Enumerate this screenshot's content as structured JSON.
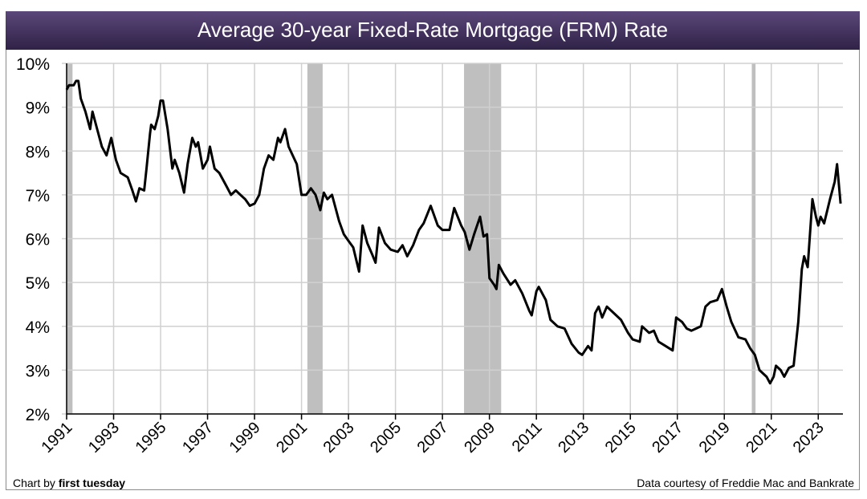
{
  "colors": {
    "title_bar": "#4a3866",
    "line": "#000000",
    "recession": "#bfbfbf",
    "grid": "#d0d0d0"
  },
  "footer": {
    "credit_prefix": "Chart by ",
    "credit_brand": "first tuesday",
    "source": "Data courtesy of Freddie Mac and Bankrate"
  },
  "chart_data": {
    "type": "line",
    "title": "Average 30-year Fixed-Rate Mortgage (FRM) Rate",
    "xlabel": "",
    "ylabel": "",
    "xlim": [
      1991,
      2024.05
    ],
    "ylim": [
      2,
      10
    ],
    "grid": true,
    "x_ticks": [
      "1991",
      "1993",
      "1995",
      "1997",
      "1999",
      "2001",
      "2003",
      "2005",
      "2007",
      "2009",
      "2011",
      "2013",
      "2015",
      "2017",
      "2019",
      "2021",
      "2023"
    ],
    "y_ticks": [
      "2%",
      "3%",
      "4%",
      "5%",
      "6%",
      "7%",
      "8%",
      "9%",
      "10%"
    ],
    "recession_bands": [
      [
        1991.0,
        1991.25
      ],
      [
        2001.25,
        2001.9
      ],
      [
        2007.92,
        2009.5
      ],
      [
        2020.17,
        2020.33
      ]
    ],
    "series": [
      {
        "x": [
          1991.0,
          1991.1,
          1991.3,
          1991.4,
          1991.5,
          1991.6,
          1991.8,
          1992.0,
          1992.1,
          1992.3,
          1992.5,
          1992.7,
          1992.9,
          1993.1,
          1993.3,
          1993.6,
          1993.8,
          1993.95,
          1994.1,
          1994.3,
          1994.4,
          1994.55,
          1994.6,
          1994.75,
          1994.9,
          1995.0,
          1995.1,
          1995.3,
          1995.5,
          1995.6,
          1995.8,
          1996.0,
          1996.15,
          1996.35,
          1996.5,
          1996.6,
          1996.8,
          1997.0,
          1997.1,
          1997.3,
          1997.5,
          1997.8,
          1998.0,
          1998.2,
          1998.4,
          1998.6,
          1998.8,
          1999.0,
          1999.2,
          1999.4,
          1999.6,
          1999.8,
          2000.0,
          2000.1,
          2000.3,
          2000.45,
          2000.8,
          2001.0,
          2001.2,
          2001.4,
          2001.6,
          2001.8,
          2001.95,
          2002.1,
          2002.3,
          2002.6,
          2002.8,
          2003.0,
          2003.2,
          2003.45,
          2003.6,
          2003.8,
          2004.0,
          2004.15,
          2004.3,
          2004.55,
          2004.8,
          2005.1,
          2005.3,
          2005.5,
          2005.75,
          2006.0,
          2006.2,
          2006.5,
          2006.8,
          2007.0,
          2007.3,
          2007.5,
          2007.8,
          2007.95,
          2008.15,
          2008.35,
          2008.6,
          2008.75,
          2008.9,
          2009.0,
          2009.2,
          2009.3,
          2009.4,
          2009.6,
          2009.9,
          2010.1,
          2010.4,
          2010.7,
          2010.8,
          2011.0,
          2011.1,
          2011.4,
          2011.6,
          2011.9,
          2012.2,
          2012.5,
          2012.8,
          2012.95,
          2013.2,
          2013.35,
          2013.5,
          2013.65,
          2013.8,
          2014.0,
          2014.3,
          2014.6,
          2014.9,
          2015.1,
          2015.4,
          2015.5,
          2015.8,
          2016.0,
          2016.2,
          2016.5,
          2016.8,
          2016.95,
          2017.2,
          2017.4,
          2017.6,
          2017.8,
          2018.0,
          2018.2,
          2018.4,
          2018.7,
          2018.9,
          2019.1,
          2019.3,
          2019.6,
          2019.9,
          2020.1,
          2020.3,
          2020.5,
          2020.8,
          2020.95,
          2021.1,
          2021.2,
          2021.4,
          2021.55,
          2021.75,
          2021.95,
          2022.15,
          2022.3,
          2022.4,
          2022.55,
          2022.75,
          2022.9,
          2023.0,
          2023.1,
          2023.25,
          2023.5,
          2023.7,
          2023.8,
          2023.95
        ],
        "y": [
          9.4,
          9.5,
          9.5,
          9.6,
          9.6,
          9.2,
          8.9,
          8.5,
          8.9,
          8.5,
          8.1,
          7.9,
          8.3,
          7.8,
          7.5,
          7.4,
          7.1,
          6.85,
          7.15,
          7.1,
          7.6,
          8.4,
          8.6,
          8.5,
          8.8,
          9.15,
          9.15,
          8.5,
          7.6,
          7.8,
          7.5,
          7.05,
          7.7,
          8.3,
          8.1,
          8.2,
          7.6,
          7.8,
          8.1,
          7.6,
          7.5,
          7.2,
          7.0,
          7.1,
          7.0,
          6.9,
          6.75,
          6.8,
          7.0,
          7.6,
          7.9,
          7.8,
          8.3,
          8.2,
          8.5,
          8.1,
          7.7,
          7.0,
          7.0,
          7.15,
          7.0,
          6.65,
          7.05,
          6.9,
          7.0,
          6.4,
          6.1,
          5.95,
          5.8,
          5.25,
          6.3,
          5.9,
          5.65,
          5.45,
          6.25,
          5.9,
          5.75,
          5.7,
          5.85,
          5.6,
          5.85,
          6.2,
          6.35,
          6.75,
          6.3,
          6.2,
          6.2,
          6.7,
          6.3,
          6.15,
          5.75,
          6.1,
          6.5,
          6.05,
          6.1,
          5.1,
          4.95,
          4.85,
          5.4,
          5.2,
          4.95,
          5.05,
          4.75,
          4.35,
          4.25,
          4.8,
          4.9,
          4.6,
          4.15,
          4.0,
          3.95,
          3.6,
          3.4,
          3.35,
          3.55,
          3.45,
          4.3,
          4.45,
          4.2,
          4.45,
          4.3,
          4.15,
          3.85,
          3.7,
          3.65,
          4.0,
          3.85,
          3.9,
          3.65,
          3.55,
          3.45,
          4.2,
          4.1,
          3.95,
          3.9,
          3.95,
          4.0,
          4.45,
          4.55,
          4.6,
          4.85,
          4.45,
          4.1,
          3.75,
          3.7,
          3.5,
          3.35,
          3.0,
          2.85,
          2.7,
          2.85,
          3.1,
          3.0,
          2.85,
          3.05,
          3.1,
          4.1,
          5.3,
          5.6,
          5.35,
          6.9,
          6.5,
          6.3,
          6.5,
          6.35,
          6.9,
          7.3,
          7.7,
          6.8
        ]
      }
    ]
  }
}
